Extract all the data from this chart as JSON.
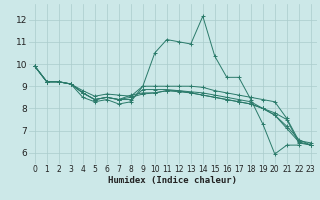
{
  "title": "",
  "xlabel": "Humidex (Indice chaleur)",
  "xlim": [
    -0.5,
    23.5
  ],
  "ylim": [
    5.5,
    12.7
  ],
  "yticks": [
    6,
    7,
    8,
    9,
    10,
    11,
    12
  ],
  "xticks": [
    0,
    1,
    2,
    3,
    4,
    5,
    6,
    7,
    8,
    9,
    10,
    11,
    12,
    13,
    14,
    15,
    16,
    17,
    18,
    19,
    20,
    21,
    22,
    23
  ],
  "bg_color": "#cce8e8",
  "grid_color": "#aacccc",
  "line_color": "#2a7a6a",
  "lines": [
    {
      "x": [
        0,
        1,
        2,
        3,
        4,
        5,
        6,
        7,
        8,
        9,
        10,
        11,
        12,
        13,
        14,
        15,
        16,
        17,
        18,
        19,
        20,
        21,
        22
      ],
      "y": [
        9.9,
        9.2,
        9.2,
        9.1,
        8.5,
        8.3,
        8.4,
        8.2,
        8.3,
        9.0,
        10.5,
        11.1,
        11.0,
        10.9,
        12.15,
        10.35,
        9.4,
        9.4,
        8.4,
        7.3,
        5.95,
        6.35,
        6.35
      ]
    },
    {
      "x": [
        0,
        1,
        2,
        3,
        4,
        5,
        6,
        7,
        8,
        9,
        10,
        11,
        12,
        13,
        14,
        15,
        16,
        17,
        18,
        19,
        20,
        21,
        22,
        23
      ],
      "y": [
        9.9,
        9.2,
        9.2,
        9.1,
        8.8,
        8.55,
        8.65,
        8.6,
        8.55,
        9.0,
        9.0,
        9.0,
        9.0,
        9.0,
        8.95,
        8.8,
        8.7,
        8.6,
        8.5,
        8.4,
        8.3,
        7.55,
        6.55,
        6.45
      ]
    },
    {
      "x": [
        0,
        1,
        2,
        3,
        4,
        5,
        6,
        7,
        8,
        9,
        10,
        11,
        12,
        13,
        14,
        15,
        16,
        17,
        18,
        19,
        20,
        21,
        22,
        23
      ],
      "y": [
        9.9,
        9.2,
        9.2,
        9.1,
        8.7,
        8.4,
        8.5,
        8.4,
        8.4,
        8.85,
        8.85,
        8.85,
        8.8,
        8.75,
        8.7,
        8.6,
        8.5,
        8.4,
        8.3,
        8.0,
        7.8,
        7.5,
        6.45,
        6.35
      ]
    },
    {
      "x": [
        0,
        1,
        2,
        3,
        4,
        5,
        6,
        7,
        8,
        9,
        10,
        11,
        12,
        13,
        14,
        15,
        16,
        17,
        18,
        19,
        20,
        21,
        22,
        23
      ],
      "y": [
        9.9,
        9.2,
        9.2,
        9.1,
        8.7,
        8.4,
        8.5,
        8.4,
        8.5,
        8.65,
        8.7,
        8.8,
        8.75,
        8.7,
        8.6,
        8.5,
        8.4,
        8.3,
        8.2,
        8.0,
        7.7,
        7.2,
        6.6,
        6.35
      ]
    },
    {
      "x": [
        0,
        1,
        2,
        3,
        4,
        5,
        6,
        7,
        8,
        9,
        10,
        11,
        12,
        13,
        14,
        15,
        16,
        17,
        18,
        19,
        20,
        21,
        22,
        23
      ],
      "y": [
        9.9,
        9.2,
        9.2,
        9.1,
        8.7,
        8.4,
        8.5,
        8.4,
        8.6,
        8.7,
        8.7,
        8.8,
        8.8,
        8.7,
        8.6,
        8.5,
        8.4,
        8.3,
        8.2,
        8.0,
        7.7,
        7.1,
        6.5,
        6.35
      ]
    }
  ]
}
